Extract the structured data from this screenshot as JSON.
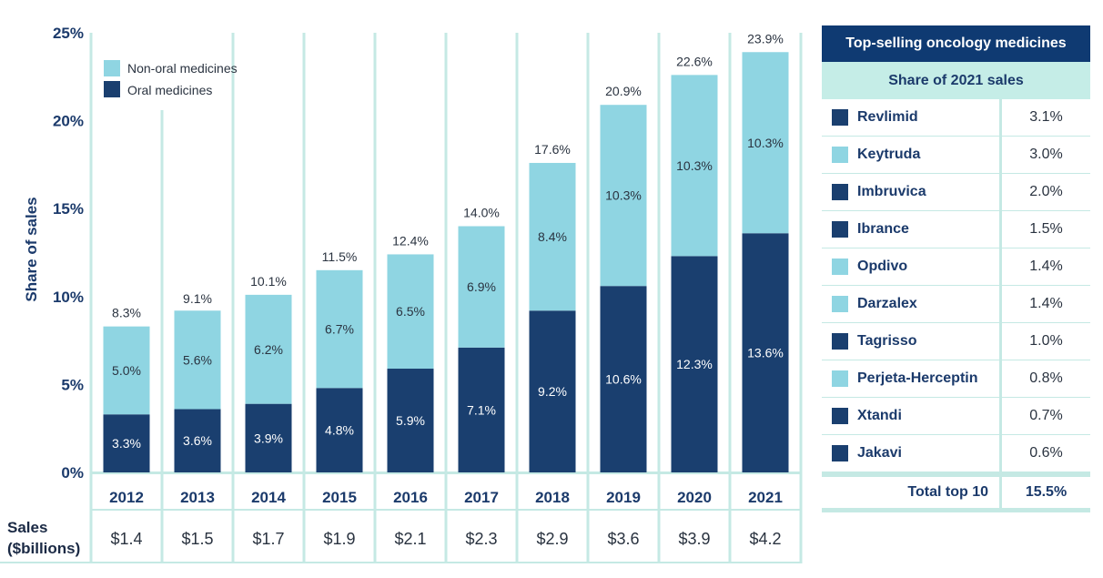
{
  "colors": {
    "oral": "#1a3f6f",
    "non_oral": "#8fd5e2",
    "grid": "#c5e9e4",
    "header_bg": "#0f3a72",
    "subheader_bg": "#c5ede7"
  },
  "chart_data": {
    "type": "bar",
    "stacked": true,
    "title": "",
    "xlabel": "",
    "ylabel": "Share of sales",
    "ylim": [
      0,
      25
    ],
    "yticks": [
      "0%",
      "5%",
      "10%",
      "15%",
      "20%",
      "25%"
    ],
    "ytick_values": [
      0,
      5,
      10,
      15,
      20,
      25
    ],
    "legend_position": "top-left",
    "categories": [
      "2012",
      "2013",
      "2014",
      "2015",
      "2016",
      "2017",
      "2018",
      "2019",
      "2020",
      "2021"
    ],
    "series": [
      {
        "name": "Oral medicines",
        "color_key": "oral",
        "values": [
          3.3,
          3.6,
          3.9,
          4.8,
          5.9,
          7.1,
          9.2,
          10.6,
          12.3,
          13.6
        ],
        "labels": [
          "3.3%",
          "3.6%",
          "3.9%",
          "4.8%",
          "5.9%",
          "7.1%",
          "9.2%",
          "10.6%",
          "12.3%",
          "13.6%"
        ]
      },
      {
        "name": "Non-oral medicines",
        "color_key": "non_oral",
        "values": [
          5.0,
          5.6,
          6.2,
          6.7,
          6.5,
          6.9,
          8.4,
          10.3,
          10.3,
          10.3
        ],
        "labels": [
          "5.0%",
          "5.6%",
          "6.2%",
          "6.7%",
          "6.5%",
          "6.9%",
          "8.4%",
          "10.3%",
          "10.3%",
          "10.3%"
        ]
      }
    ],
    "totals": [
      8.3,
      9.1,
      10.1,
      11.5,
      12.4,
      14.0,
      17.6,
      20.9,
      22.6,
      23.9
    ],
    "total_labels": [
      "8.3%",
      "9.1%",
      "10.1%",
      "11.5%",
      "12.4%",
      "14.0%",
      "17.6%",
      "20.9%",
      "22.6%",
      "23.9%"
    ],
    "legend": [
      {
        "name": "Non-oral medicines",
        "color_key": "non_oral"
      },
      {
        "name": "Oral medicines",
        "color_key": "oral"
      }
    ],
    "sales_row": {
      "label_line1": "Sales",
      "label_line2": "($billions)",
      "values": [
        "$1.4",
        "$1.5",
        "$1.7",
        "$1.9",
        "$2.1",
        "$2.3",
        "$2.9",
        "$3.6",
        "$3.9",
        "$4.2"
      ]
    }
  },
  "table": {
    "title": "Top-selling oncology medicines",
    "subtitle": "Share of 2021 sales",
    "rows": [
      {
        "name": "Revlimid",
        "type": "oral",
        "value": "3.1%"
      },
      {
        "name": "Keytruda",
        "type": "non_oral",
        "value": "3.0%"
      },
      {
        "name": "Imbruvica",
        "type": "oral",
        "value": "2.0%"
      },
      {
        "name": "Ibrance",
        "type": "oral",
        "value": "1.5%"
      },
      {
        "name": "Opdivo",
        "type": "non_oral",
        "value": "1.4%"
      },
      {
        "name": "Darzalex",
        "type": "non_oral",
        "value": "1.4%"
      },
      {
        "name": "Tagrisso",
        "type": "oral",
        "value": "1.0%"
      },
      {
        "name": "Perjeta-Herceptin",
        "type": "non_oral",
        "value": "0.8%"
      },
      {
        "name": "Xtandi",
        "type": "oral",
        "value": "0.7%"
      },
      {
        "name": "Jakavi",
        "type": "oral",
        "value": "0.6%"
      }
    ],
    "total_label": "Total top 10",
    "total_value": "15.5%"
  }
}
